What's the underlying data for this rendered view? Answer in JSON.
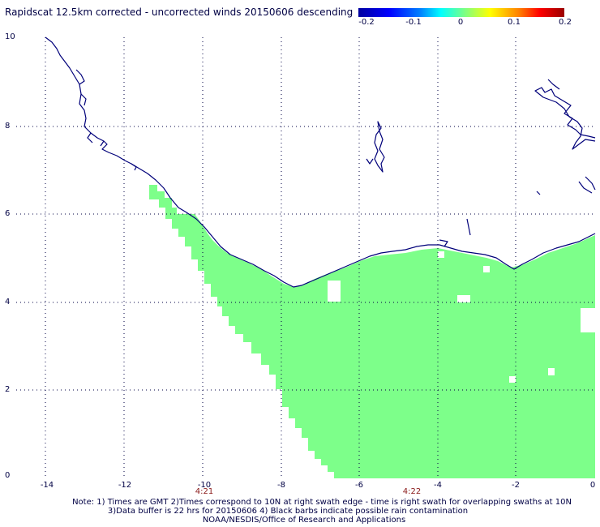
{
  "title": "Rapidscat 12.5km corrected - uncorrected winds 20150606 descending",
  "colorbar": {
    "ticks": [
      "-0.2",
      "-0.1",
      "0",
      "0.1",
      "0.2"
    ]
  },
  "axes": {
    "x_ticks": [
      "-14",
      "-12",
      "-10",
      "-8",
      "-6",
      "-4",
      "-2",
      "0"
    ],
    "y_ticks": [
      "10",
      "8",
      "6",
      "4",
      "2",
      "0"
    ]
  },
  "times": [
    "4:21",
    "4:22"
  ],
  "notes": [
    "Note: 1) Times are GMT 2)Times correspond to 10N at right swath edge - time is right swath for overlapping swaths at 10N",
    "3)Data buffer is 22 hrs for 20150606 4) Black barbs indicate possible rain contamination",
    "NOAA/NESDIS/Office of Research and Applications"
  ],
  "colors": {
    "swath": "#7dff8a",
    "coastline": "#00007a",
    "grid": "#000044"
  }
}
